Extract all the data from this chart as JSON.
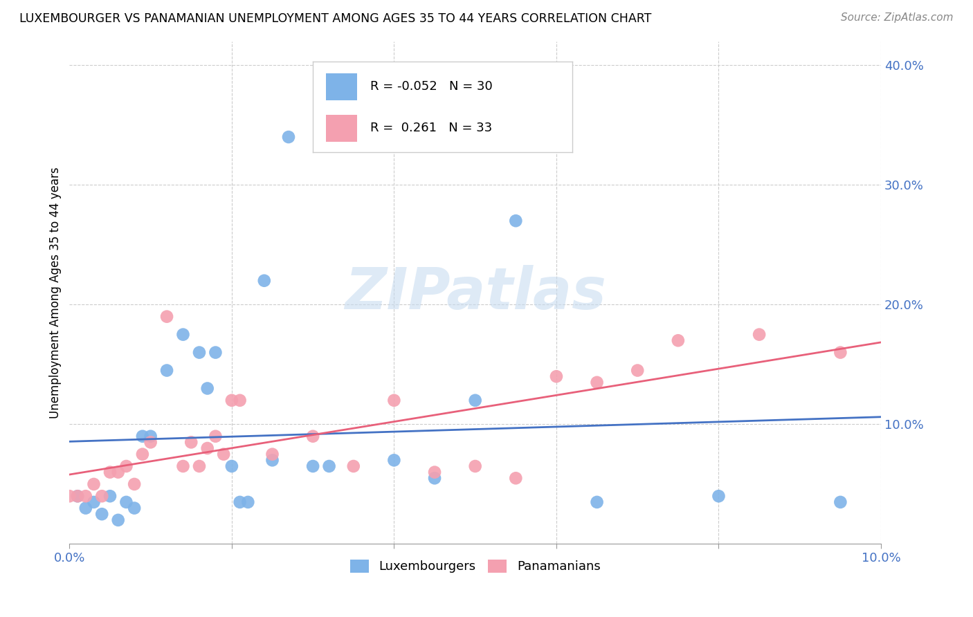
{
  "title": "LUXEMBOURGER VS PANAMANIAN UNEMPLOYMENT AMONG AGES 35 TO 44 YEARS CORRELATION CHART",
  "source": "Source: ZipAtlas.com",
  "ylabel": "Unemployment Among Ages 35 to 44 years",
  "xlim": [
    0.0,
    0.1
  ],
  "ylim": [
    0.0,
    0.42
  ],
  "x_ticks": [
    0.0,
    0.02,
    0.04,
    0.06,
    0.08,
    0.1
  ],
  "x_tick_labels": [
    "0.0%",
    "",
    "",
    "",
    "",
    "10.0%"
  ],
  "y_ticks_right": [
    0.1,
    0.2,
    0.3,
    0.4
  ],
  "y_tick_labels_right": [
    "10.0%",
    "20.0%",
    "30.0%",
    "40.0%"
  ],
  "lux_R": -0.052,
  "lux_N": 30,
  "pan_R": 0.261,
  "pan_N": 33,
  "lux_color": "#7EB3E8",
  "pan_color": "#F4A0B0",
  "lux_line_color": "#4472C4",
  "pan_line_color": "#E8607A",
  "watermark": "ZIPatlas",
  "lux_x": [
    0.001,
    0.002,
    0.003,
    0.004,
    0.005,
    0.006,
    0.007,
    0.008,
    0.009,
    0.01,
    0.012,
    0.014,
    0.016,
    0.017,
    0.018,
    0.02,
    0.021,
    0.022,
    0.024,
    0.025,
    0.027,
    0.03,
    0.032,
    0.04,
    0.045,
    0.05,
    0.055,
    0.065,
    0.08,
    0.095
  ],
  "lux_y": [
    0.04,
    0.03,
    0.035,
    0.025,
    0.04,
    0.02,
    0.035,
    0.03,
    0.09,
    0.09,
    0.145,
    0.175,
    0.16,
    0.13,
    0.16,
    0.065,
    0.035,
    0.035,
    0.22,
    0.07,
    0.34,
    0.065,
    0.065,
    0.07,
    0.055,
    0.12,
    0.27,
    0.035,
    0.04,
    0.035
  ],
  "pan_x": [
    0.0,
    0.001,
    0.002,
    0.003,
    0.004,
    0.005,
    0.006,
    0.007,
    0.008,
    0.009,
    0.01,
    0.012,
    0.014,
    0.015,
    0.016,
    0.017,
    0.018,
    0.019,
    0.02,
    0.021,
    0.025,
    0.03,
    0.035,
    0.04,
    0.045,
    0.05,
    0.055,
    0.06,
    0.065,
    0.07,
    0.075,
    0.085,
    0.095
  ],
  "pan_y": [
    0.04,
    0.04,
    0.04,
    0.05,
    0.04,
    0.06,
    0.06,
    0.065,
    0.05,
    0.075,
    0.085,
    0.19,
    0.065,
    0.085,
    0.065,
    0.08,
    0.09,
    0.075,
    0.12,
    0.12,
    0.075,
    0.09,
    0.065,
    0.12,
    0.06,
    0.065,
    0.055,
    0.14,
    0.135,
    0.145,
    0.17,
    0.175,
    0.16
  ]
}
